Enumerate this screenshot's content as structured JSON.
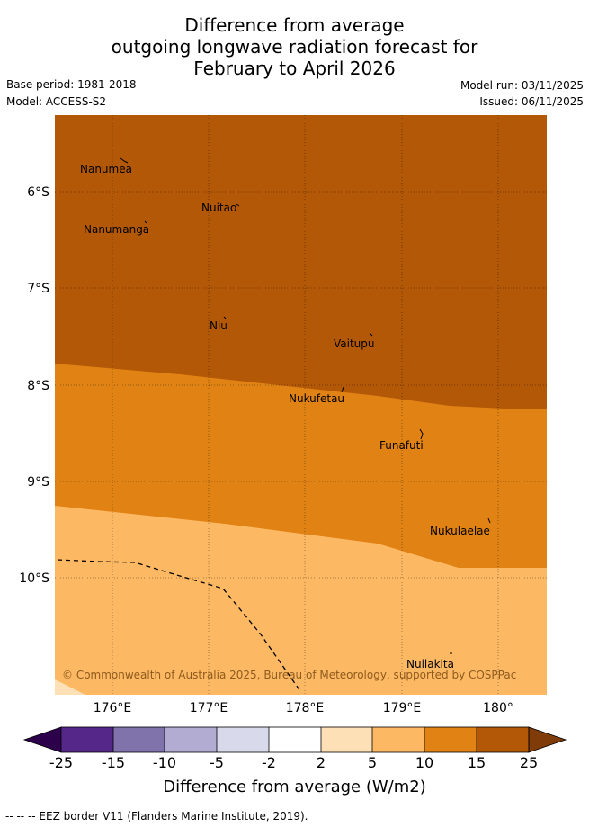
{
  "title": {
    "line1": "Difference from average",
    "line2": "outgoing longwave radiation forecast for",
    "line3": "February to April 2026"
  },
  "meta": {
    "base_period": "Base period: 1981-2018",
    "model": "Model: ACCESS-S2",
    "model_run": "Model run: 03/11/2025",
    "issued": "Issued: 06/11/2025"
  },
  "map": {
    "x_ticks": [
      "176°E",
      "177°E",
      "178°E",
      "179°E",
      "180°"
    ],
    "y_ticks": [
      "6°S",
      "7°S",
      "8°S",
      "9°S",
      "10°S"
    ],
    "islands": [
      "Nanumea",
      "Nuitao",
      "Nanumanga",
      "Niu",
      "Vaitupu",
      "Nukufetau",
      "Funafuti",
      "Nukulaelae",
      "Nuilakita"
    ],
    "copyright": "© Commonwealth of Australia 2025, Bureau of Meteorology, supported by COSPPac",
    "colors": {
      "band_15_25": "#b35806",
      "band_10_15": "#e08214",
      "band_5_10": "#fdb863",
      "band_2_5": "#fee0b6"
    }
  },
  "legend": {
    "labels": [
      "-25",
      "-15",
      "-10",
      "-5",
      "-2",
      "2",
      "5",
      "10",
      "15",
      "25"
    ],
    "colors": [
      "#542788",
      "#8073ac",
      "#b2abd2",
      "#d8daeb",
      "#ffffff",
      "#fee0b6",
      "#fdb863",
      "#e08214",
      "#b35806"
    ],
    "under_color": "#2d004b",
    "over_color": "#7f3b08",
    "title": "Difference from average (W/m2)"
  },
  "footnote": "--  --  -- EEZ border V11 (Flanders Marine Institute, 2019)."
}
